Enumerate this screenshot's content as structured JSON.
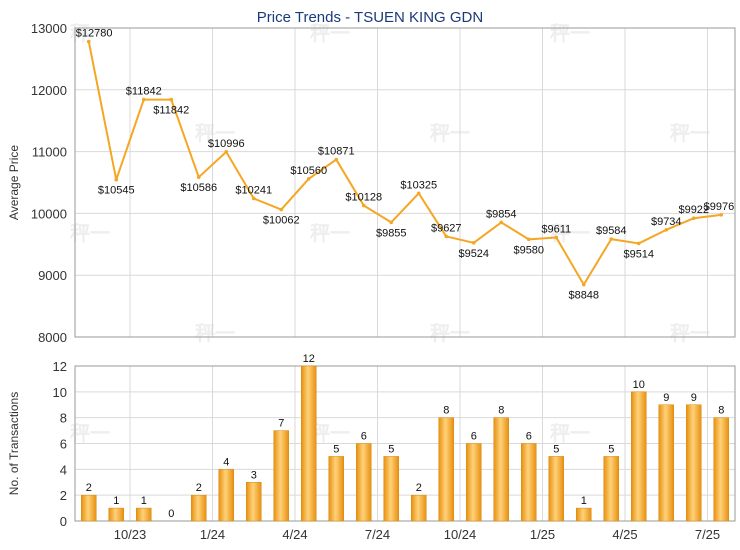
{
  "chart_data": [
    {
      "type": "line",
      "title": "Price Trends - TSUEN KING GDN",
      "ylabel": "Average Price",
      "ylim": [
        8000,
        13000
      ],
      "yticks": [
        8000,
        9000,
        10000,
        11000,
        12000,
        13000
      ],
      "color": "#f5a623",
      "grid": true,
      "points": [
        {
          "x": 0,
          "value": 12780,
          "label": "$12780"
        },
        {
          "x": 1,
          "value": 10545,
          "label": "$10545"
        },
        {
          "x": 2,
          "value": 11842,
          "label": "$11842"
        },
        {
          "x": 3,
          "value": 11842,
          "label": "$11842"
        },
        {
          "x": 4,
          "value": 10586,
          "label": "$10586"
        },
        {
          "x": 5,
          "value": 10996,
          "label": "$10996"
        },
        {
          "x": 6,
          "value": 10241,
          "label": "$10241"
        },
        {
          "x": 7,
          "value": 10062,
          "label": "$10062"
        },
        {
          "x": 8,
          "value": 10560,
          "label": "$10560"
        },
        {
          "x": 9,
          "value": 10871,
          "label": "$10871"
        },
        {
          "x": 10,
          "value": 10128,
          "label": "$10128"
        },
        {
          "x": 11,
          "value": 9855,
          "label": "$9855"
        },
        {
          "x": 12,
          "value": 10325,
          "label": "$10325"
        },
        {
          "x": 13,
          "value": 9627,
          "label": "$9627"
        },
        {
          "x": 14,
          "value": 9524,
          "label": "$9524"
        },
        {
          "x": 15,
          "value": 9854,
          "label": "$9854"
        },
        {
          "x": 16,
          "value": 9580,
          "label": "$9580"
        },
        {
          "x": 17,
          "value": 9611,
          "label": "$9611"
        },
        {
          "x": 18,
          "value": 8848,
          "label": "$8848"
        },
        {
          "x": 19,
          "value": 9584,
          "label": "$9584"
        },
        {
          "x": 20,
          "value": 9514,
          "label": "$9514"
        },
        {
          "x": 21,
          "value": 9734,
          "label": "$9734"
        },
        {
          "x": 22,
          "value": 9922,
          "label": "$9922"
        },
        {
          "x": 23,
          "value": 9976,
          "label": "$9976"
        }
      ]
    },
    {
      "type": "bar",
      "ylabel": "No. of Transactions",
      "ylim": [
        0,
        12
      ],
      "yticks": [
        0,
        2,
        4,
        6,
        8,
        10,
        12
      ],
      "color": "#f5a623",
      "grid": true,
      "values": [
        2,
        1,
        1,
        0,
        2,
        4,
        3,
        7,
        12,
        5,
        6,
        5,
        2,
        8,
        6,
        8,
        6,
        5,
        1,
        5,
        10,
        9,
        9,
        8
      ],
      "xtick_labels": [
        {
          "at": 2,
          "label": "10/23"
        },
        {
          "at": 5,
          "label": "1/24"
        },
        {
          "at": 8,
          "label": "4/24"
        },
        {
          "at": 11,
          "label": "7/24"
        },
        {
          "at": 14,
          "label": "10/24"
        },
        {
          "at": 17,
          "label": "1/25"
        },
        {
          "at": 20,
          "label": "4/25"
        },
        {
          "at": 23,
          "label": "7/25"
        }
      ]
    }
  ]
}
